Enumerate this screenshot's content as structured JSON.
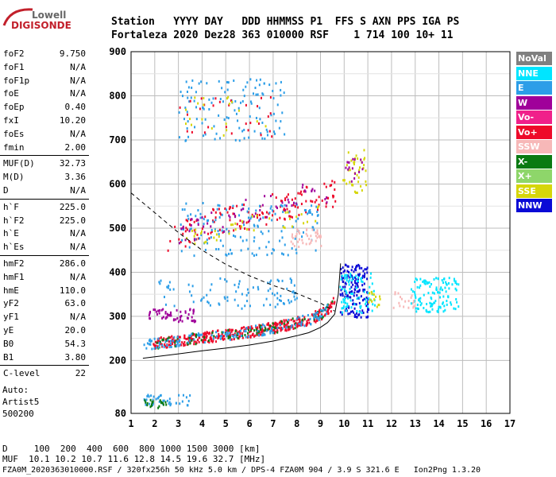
{
  "logo": {
    "line1": "Lowell",
    "line2": "DIGISONDE"
  },
  "header": {
    "line1": "Station   YYYY DAY   DDD HHMMSS P1  FFS S AXN PPS IGA PS",
    "line2": "Fortaleza 2020 Dez28 363 010000 RSF    1 714 100 10+ 11"
  },
  "params": [
    {
      "group": 1,
      "items": [
        {
          "key": "foF2",
          "value": "9.750"
        },
        {
          "key": "foF1",
          "value": "N/A"
        },
        {
          "key": "foF1p",
          "value": "N/A"
        },
        {
          "key": "foE",
          "value": "N/A"
        },
        {
          "key": "foEp",
          "value": "0.40"
        },
        {
          "key": "fxI",
          "value": "10.20"
        },
        {
          "key": "foEs",
          "value": "N/A"
        },
        {
          "key": "fmin",
          "value": "2.00"
        }
      ]
    },
    {
      "group": 2,
      "items": [
        {
          "key": "MUF(D)",
          "value": "32.73"
        },
        {
          "key": "M(D)",
          "value": "3.36"
        },
        {
          "key": "D",
          "value": "N/A"
        }
      ]
    },
    {
      "group": 3,
      "items": [
        {
          "key": "h`F",
          "value": "225.0"
        },
        {
          "key": "h`F2",
          "value": "225.0"
        },
        {
          "key": "h`E",
          "value": "N/A"
        },
        {
          "key": "h`Es",
          "value": "N/A"
        }
      ]
    },
    {
      "group": 4,
      "items": [
        {
          "key": "hmF2",
          "value": "286.0"
        },
        {
          "key": "hmF1",
          "value": "N/A"
        },
        {
          "key": "hmE",
          "value": "110.0"
        },
        {
          "key": "yF2",
          "value": "63.0"
        },
        {
          "key": "yF1",
          "value": "N/A"
        },
        {
          "key": "yE",
          "value": "20.0"
        },
        {
          "key": "B0",
          "value": "54.3"
        },
        {
          "key": "B1",
          "value": "3.80"
        }
      ]
    },
    {
      "group": 5,
      "items": [
        {
          "key": "C-level",
          "value": "22"
        }
      ]
    }
  ],
  "auto": {
    "line1": "Auto:",
    "line2": "Artist5",
    "line3": "500200"
  },
  "legend": [
    {
      "label": "NoVal",
      "color": "#808080"
    },
    {
      "label": "NNE",
      "color": "#00e5ff"
    },
    {
      "label": "E",
      "color": "#2c9ee8"
    },
    {
      "label": "W",
      "color": "#a0009a"
    },
    {
      "label": "Vo-",
      "color": "#f0208a"
    },
    {
      "label": "Vo+",
      "color": "#ee0a2a"
    },
    {
      "label": "SSW",
      "color": "#f7b8b8"
    },
    {
      "label": "X-",
      "color": "#0a7a12"
    },
    {
      "label": "X+",
      "color": "#8ed66a"
    },
    {
      "label": "SSE",
      "color": "#d6d60a"
    },
    {
      "label": "NNW",
      "color": "#0a0ad6"
    }
  ],
  "footer": {
    "line1": "D     100  200  400  600  800 1000 1500 3000 [km]",
    "line2": "MUF  10.1 10.2 10.7 11.6 12.8 14.5 19.6 32.7 [MHz]",
    "line3": "FZA0M_2020363010000.RSF / 320fx256h 50 kHz 5.0 km / DPS-4 FZA0M 904 / 3.9 S 321.6 E   Ion2Png 1.3.20"
  },
  "chart_data": {
    "type": "scatter",
    "xlim": [
      1,
      17
    ],
    "ylim": [
      80,
      900
    ],
    "xticks": [
      1,
      2,
      3,
      4,
      5,
      6,
      7,
      8,
      9,
      10,
      11,
      12,
      13,
      14,
      15,
      16,
      17
    ],
    "yticks": [
      80,
      200,
      300,
      400,
      500,
      600,
      700,
      800,
      900
    ],
    "grid": true,
    "dashed_curve": [
      [
        1,
        580
      ],
      [
        2,
        535
      ],
      [
        3,
        490
      ],
      [
        4,
        450
      ],
      [
        5,
        418
      ],
      [
        6,
        392
      ],
      [
        7,
        370
      ],
      [
        8,
        352
      ],
      [
        9,
        330
      ],
      [
        9.6,
        312
      ]
    ],
    "solid_curve": [
      [
        1.5,
        205
      ],
      [
        3,
        215
      ],
      [
        4,
        222
      ],
      [
        5,
        228
      ],
      [
        6,
        235
      ],
      [
        7,
        244
      ],
      [
        8,
        256
      ],
      [
        8.5,
        263
      ],
      [
        9,
        275
      ],
      [
        9.3,
        286
      ],
      [
        9.6,
        305
      ],
      [
        9.75,
        350
      ],
      [
        9.85,
        420
      ]
    ],
    "clusters": [
      {
        "color": "#ee0a2a",
        "x": [
          1.9,
          9.6
        ],
        "y": [
          225,
          300
        ],
        "n": 420,
        "shape": "trace"
      },
      {
        "color": "#0a7a12",
        "x": [
          2.0,
          9.5
        ],
        "y": [
          228,
          300
        ],
        "n": 90,
        "shape": "trace"
      },
      {
        "color": "#2c9ee8",
        "x": [
          1.5,
          9.5
        ],
        "y": [
          210,
          300
        ],
        "n": 140,
        "shape": "trace"
      },
      {
        "color": "#ee0a2a",
        "x": [
          2.5,
          9.6
        ],
        "y": [
          450,
          620
        ],
        "n": 140,
        "shape": "trace2"
      },
      {
        "color": "#2c9ee8",
        "x": [
          3.0,
          9.0
        ],
        "y": [
          440,
          560
        ],
        "n": 150,
        "shape": "box"
      },
      {
        "color": "#a0009a",
        "x": [
          3.0,
          9.3
        ],
        "y": [
          460,
          620
        ],
        "n": 60,
        "shape": "trace2"
      },
      {
        "color": "#d6d60a",
        "x": [
          3.0,
          9.0
        ],
        "y": [
          455,
          560
        ],
        "n": 40,
        "shape": "trace2"
      },
      {
        "color": "#2c9ee8",
        "x": [
          3.0,
          7.5
        ],
        "y": [
          700,
          840
        ],
        "n": 120,
        "shape": "box"
      },
      {
        "color": "#ee0a2a",
        "x": [
          3.0,
          7.0
        ],
        "y": [
          710,
          800
        ],
        "n": 30,
        "shape": "box"
      },
      {
        "color": "#d6d60a",
        "x": [
          3.0,
          7.0
        ],
        "y": [
          700,
          800
        ],
        "n": 20,
        "shape": "box"
      },
      {
        "color": "#2c9ee8",
        "x": [
          2.0,
          8.0
        ],
        "y": [
          320,
          390
        ],
        "n": 90,
        "shape": "box"
      },
      {
        "color": "#a0009a",
        "x": [
          1.7,
          3.7
        ],
        "y": [
          290,
          320
        ],
        "n": 60,
        "shape": "box"
      },
      {
        "color": "#0a0ad6",
        "x": [
          9.8,
          11.0
        ],
        "y": [
          300,
          420
        ],
        "n": 160,
        "shape": "box"
      },
      {
        "color": "#00e5ff",
        "x": [
          9.8,
          11.3
        ],
        "y": [
          310,
          400
        ],
        "n": 80,
        "shape": "box"
      },
      {
        "color": "#00e5ff",
        "x": [
          12.8,
          14.8
        ],
        "y": [
          310,
          390
        ],
        "n": 120,
        "shape": "box"
      },
      {
        "color": "#f7b8b8",
        "x": [
          7.7,
          9.0
        ],
        "y": [
          460,
          500
        ],
        "n": 40,
        "shape": "box"
      },
      {
        "color": "#f7b8b8",
        "x": [
          12.0,
          13.0
        ],
        "y": [
          320,
          360
        ],
        "n": 20,
        "shape": "box"
      },
      {
        "color": "#d6d60a",
        "x": [
          9.9,
          10.9
        ],
        "y": [
          580,
          680
        ],
        "n": 40,
        "shape": "box"
      },
      {
        "color": "#a0009a",
        "x": [
          10.0,
          10.8
        ],
        "y": [
          600,
          660
        ],
        "n": 15,
        "shape": "box"
      },
      {
        "color": "#2c9ee8",
        "x": [
          1.5,
          3.5
        ],
        "y": [
          100,
          125
        ],
        "n": 40,
        "shape": "box"
      },
      {
        "color": "#0a7a12",
        "x": [
          1.5,
          2.5
        ],
        "y": [
          95,
          115
        ],
        "n": 20,
        "shape": "box"
      },
      {
        "color": "#d6d60a",
        "x": [
          11.0,
          11.6
        ],
        "y": [
          320,
          360
        ],
        "n": 15,
        "shape": "box"
      }
    ]
  }
}
